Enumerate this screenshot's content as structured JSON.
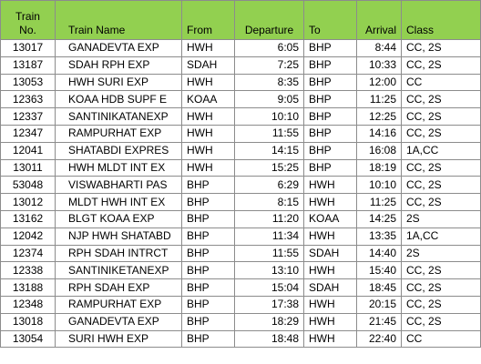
{
  "table": {
    "header": [
      "Train No.",
      "Train Name",
      "From",
      "Departure",
      "To",
      "Arrival",
      "Class"
    ],
    "rows": [
      [
        "13017",
        "GANADEVTA EXP",
        "HWH",
        "6:05",
        "BHP",
        "8:44",
        "CC, 2S"
      ],
      [
        "13187",
        "SDAH RPH EXP",
        "SDAH",
        "7:25",
        "BHP",
        "10:33",
        "CC, 2S"
      ],
      [
        "13053",
        "HWH SURI EXP",
        "HWH",
        "8:35",
        "BHP",
        "12:00",
        "CC"
      ],
      [
        "12363",
        "KOAA HDB SUPF E",
        "KOAA",
        "9:05",
        "BHP",
        "11:25",
        "CC, 2S"
      ],
      [
        "12337",
        "SANTINIKATANEXP",
        "HWH",
        "10:10",
        "BHP",
        "12:25",
        "CC, 2S"
      ],
      [
        "12347",
        "RAMPURHAT EXP",
        "HWH",
        "11:55",
        "BHP",
        "14:16",
        "CC, 2S"
      ],
      [
        "12041",
        "SHATABDI EXPRES",
        "HWH",
        "14:15",
        "BHP",
        "16:08",
        "1A,CC"
      ],
      [
        "13011",
        "HWH MLDT INT EX",
        "HWH",
        "15:25",
        "BHP",
        "18:19",
        "CC, 2S"
      ],
      [
        "53048",
        "VISWABHARTI PAS",
        "BHP",
        "6:29",
        "HWH",
        "10:10",
        "CC, 2S"
      ],
      [
        "13012",
        "MLDT HWH INT EX",
        "BHP",
        "8:15",
        "HWH",
        "11:25",
        "CC, 2S"
      ],
      [
        "13162",
        "BLGT KOAA EXP",
        "BHP",
        "11:20",
        "KOAA",
        "14:25",
        "2S"
      ],
      [
        "12042",
        "NJP HWH SHATABD",
        "BHP",
        "11:34",
        "HWH",
        "13:35",
        "1A,CC"
      ],
      [
        "12374",
        "RPH SDAH INTRCT",
        "BHP",
        "11:55",
        "SDAH",
        "14:40",
        "2S"
      ],
      [
        "12338",
        "SANTINIKETANEXP",
        "BHP",
        "13:10",
        "HWH",
        "15:40",
        "CC, 2S"
      ],
      [
        "13188",
        "RPH SDAH EXP",
        "BHP",
        "15:04",
        "SDAH",
        "18:45",
        "CC, 2S"
      ],
      [
        "12348",
        "RAMPURHAT EXP",
        "BHP",
        "17:38",
        "HWH",
        "20:15",
        "CC, 2S"
      ],
      [
        "13018",
        "GANADEVTA EXP",
        "BHP",
        "18:29",
        "HWH",
        "21:45",
        "CC, 2S"
      ],
      [
        "13054",
        "SURI HWH EXP",
        "BHP",
        "18:48",
        "HWH",
        "22:40",
        "CC"
      ]
    ]
  }
}
